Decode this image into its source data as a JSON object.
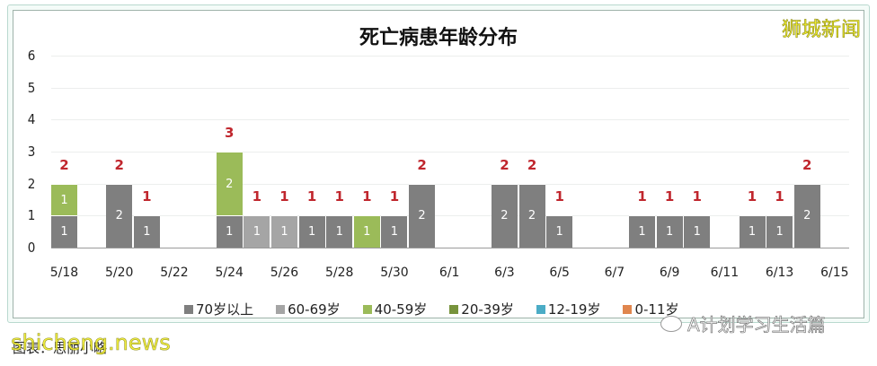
{
  "header": {
    "title": "死亡病患年龄分布",
    "watermark": "狮城新闻"
  },
  "footer": {
    "caption": "图表：思丽小略",
    "watermark_left": "shicheng.news",
    "wechat_account": "A计划学习生活篇"
  },
  "colors": {
    "70+": "#7f7f7f",
    "60-69": "#a5a5a5",
    "40-59": "#9bbb59",
    "20-39": "#77933c",
    "12-19": "#4bacc6",
    "0-11": "#e0864e",
    "total_label": "#c0262d"
  },
  "chart_data": {
    "type": "bar",
    "stacked": true,
    "title": "死亡病患年龄分布",
    "xlabel": "",
    "ylabel": "",
    "ylim": [
      0,
      6
    ],
    "yticks": [
      0,
      1,
      2,
      3,
      4,
      5,
      6
    ],
    "grid": true,
    "legend_position": "bottom",
    "categories": [
      "5/18",
      "5/19",
      "5/20",
      "5/21",
      "5/22",
      "5/23",
      "5/24",
      "5/25",
      "5/26",
      "5/27",
      "5/28",
      "5/29",
      "5/30",
      "5/31",
      "6/1",
      "6/2",
      "6/3",
      "6/4",
      "6/5",
      "6/6",
      "6/7",
      "6/8",
      "6/9",
      "6/10",
      "6/11",
      "6/12",
      "6/13",
      "6/14",
      "6/15"
    ],
    "xtick_labels": [
      "5/18",
      "5/20",
      "5/22",
      "5/24",
      "5/26",
      "5/28",
      "5/30",
      "6/1",
      "6/3",
      "6/5",
      "6/7",
      "6/9",
      "6/11",
      "6/13",
      "6/15"
    ],
    "series": [
      {
        "name": "70岁以上",
        "key": "70+",
        "values": [
          1,
          0,
          2,
          1,
          0,
          0,
          1,
          0,
          0,
          1,
          1,
          0,
          1,
          2,
          0,
          0,
          2,
          2,
          1,
          0,
          0,
          1,
          1,
          1,
          0,
          1,
          1,
          2,
          0
        ]
      },
      {
        "name": "60-69岁",
        "key": "60-69",
        "values": [
          0,
          0,
          0,
          0,
          0,
          0,
          0,
          1,
          1,
          0,
          0,
          0,
          0,
          0,
          0,
          0,
          0,
          0,
          0,
          0,
          0,
          0,
          0,
          0,
          0,
          0,
          0,
          0,
          0
        ]
      },
      {
        "name": "40-59岁",
        "key": "40-59",
        "values": [
          1,
          0,
          0,
          0,
          0,
          0,
          2,
          0,
          0,
          0,
          0,
          1,
          0,
          0,
          0,
          0,
          0,
          0,
          0,
          0,
          0,
          0,
          0,
          0,
          0,
          0,
          0,
          0,
          0
        ]
      },
      {
        "name": "20-39岁",
        "key": "20-39",
        "values": [
          0,
          0,
          0,
          0,
          0,
          0,
          0,
          0,
          0,
          0,
          0,
          0,
          0,
          0,
          0,
          0,
          0,
          0,
          0,
          0,
          0,
          0,
          0,
          0,
          0,
          0,
          0,
          0,
          0
        ]
      },
      {
        "name": "12-19岁",
        "key": "12-19",
        "values": [
          0,
          0,
          0,
          0,
          0,
          0,
          0,
          0,
          0,
          0,
          0,
          0,
          0,
          0,
          0,
          0,
          0,
          0,
          0,
          0,
          0,
          0,
          0,
          0,
          0,
          0,
          0,
          0,
          0
        ]
      },
      {
        "name": "0-11岁",
        "key": "0-11",
        "values": [
          0,
          0,
          0,
          0,
          0,
          0,
          0,
          0,
          0,
          0,
          0,
          0,
          0,
          0,
          0,
          0,
          0,
          0,
          0,
          0,
          0,
          0,
          0,
          0,
          0,
          0,
          0,
          0,
          0
        ]
      }
    ],
    "totals": [
      2,
      0,
      2,
      1,
      0,
      0,
      3,
      1,
      1,
      1,
      1,
      1,
      1,
      2,
      0,
      0,
      2,
      2,
      1,
      0,
      0,
      1,
      1,
      1,
      0,
      1,
      1,
      2,
      0
    ]
  }
}
